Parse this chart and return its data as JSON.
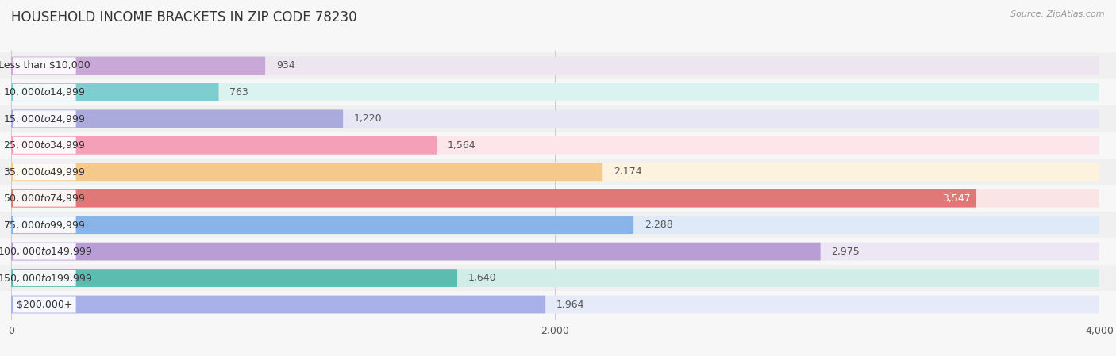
{
  "title": "HOUSEHOLD INCOME BRACKETS IN ZIP CODE 78230",
  "source_text": "Source: ZipAtlas.com",
  "categories": [
    "Less than $10,000",
    "$10,000 to $14,999",
    "$15,000 to $24,999",
    "$25,000 to $34,999",
    "$35,000 to $49,999",
    "$50,000 to $74,999",
    "$75,000 to $99,999",
    "$100,000 to $149,999",
    "$150,000 to $199,999",
    "$200,000+"
  ],
  "values": [
    934,
    763,
    1220,
    1564,
    2174,
    3547,
    2288,
    2975,
    1640,
    1964
  ],
  "bar_colors": [
    "#c9a8d8",
    "#7dcece",
    "#aaaadc",
    "#f4a0b8",
    "#f5c98a",
    "#e07878",
    "#88b4e8",
    "#b89ed4",
    "#5cbcb0",
    "#a8b0e8"
  ],
  "bar_bg_colors": [
    "#ede6f0",
    "#daf2f0",
    "#e6e6f4",
    "#fce6ec",
    "#fdf2de",
    "#fae4e4",
    "#deeaf8",
    "#ede6f4",
    "#d2ece8",
    "#e6eaf8"
  ],
  "xlim": [
    0,
    4000
  ],
  "xticks": [
    0,
    2000,
    4000
  ],
  "bg_color": "#f7f7f7",
  "row_bg_colors": [
    "#f0f0f0",
    "#f7f7f7"
  ],
  "title_fontsize": 12,
  "label_fontsize": 9,
  "value_fontsize": 9
}
